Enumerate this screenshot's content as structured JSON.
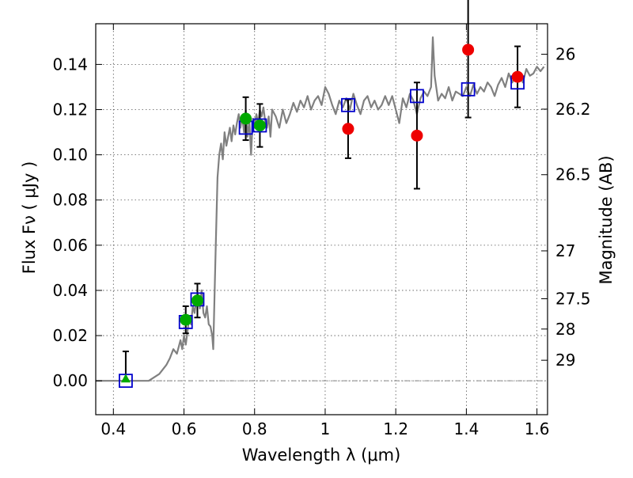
{
  "chart_data": {
    "type": "scatter",
    "xlabel": "Wavelength  λ (μm)",
    "ylabel": "Flux  Fν  ( μJy )",
    "y2label": "Magnitude (AB)",
    "xlim": [
      0.35,
      1.63
    ],
    "ylim": [
      -0.015,
      0.158
    ],
    "x_ticks": [
      0.4,
      0.6,
      0.8,
      1.0,
      1.2,
      1.4,
      1.6
    ],
    "x_tick_labels": [
      "0.4",
      "0.6",
      "0.8",
      "1",
      "1.2",
      "1.4",
      "1.6"
    ],
    "y_ticks": [
      0.0,
      0.02,
      0.04,
      0.06,
      0.08,
      0.1,
      0.12,
      0.14
    ],
    "y_tick_labels": [
      "0.00",
      "0.02",
      "0.04",
      "0.06",
      "0.08",
      "0.10",
      "0.12",
      "0.14"
    ],
    "mag_ticks": [
      {
        "label": "26",
        "flux": 0.1445
      },
      {
        "label": "26.2",
        "flux": 0.1202
      },
      {
        "label": "26.5",
        "flux": 0.0912
      },
      {
        "label": "27",
        "flux": 0.0575
      },
      {
        "label": "27.5",
        "flux": 0.0363
      },
      {
        "label": "28",
        "flux": 0.0229
      },
      {
        "label": "29",
        "flux": 0.0091
      }
    ],
    "grid": true,
    "zero_line": true,
    "colors": {
      "model": "#808080",
      "model_fluxes": "#0000cc",
      "detections": "#00aa00",
      "upper_bands": "#ee0000",
      "errorbars": "#000000",
      "zero_line": "#888888"
    },
    "series": [
      {
        "kind": "line",
        "x": [
          0.35,
          0.5,
          0.51,
          0.53,
          0.55,
          0.56,
          0.57,
          0.58,
          0.59,
          0.595,
          0.6,
          0.605,
          0.61,
          0.615,
          0.62,
          0.625,
          0.63,
          0.635,
          0.64,
          0.645,
          0.65,
          0.655,
          0.66,
          0.665,
          0.67,
          0.675,
          0.68,
          0.683,
          0.687,
          0.69,
          0.695,
          0.7,
          0.705,
          0.71,
          0.715,
          0.72,
          0.725,
          0.73,
          0.735,
          0.74,
          0.745,
          0.75,
          0.755,
          0.76,
          0.765,
          0.77,
          0.775,
          0.78,
          0.785,
          0.79,
          0.795,
          0.8,
          0.805,
          0.81,
          0.815,
          0.82,
          0.825,
          0.83,
          0.835,
          0.84,
          0.845,
          0.85,
          0.86,
          0.87,
          0.88,
          0.89,
          0.9,
          0.91,
          0.92,
          0.93,
          0.94,
          0.95,
          0.96,
          0.97,
          0.98,
          0.99,
          1.0,
          1.01,
          1.02,
          1.03,
          1.04,
          1.05,
          1.06,
          1.07,
          1.08,
          1.09,
          1.1,
          1.11,
          1.12,
          1.13,
          1.14,
          1.15,
          1.16,
          1.17,
          1.18,
          1.19,
          1.2,
          1.21,
          1.22,
          1.23,
          1.24,
          1.25,
          1.26,
          1.27,
          1.28,
          1.29,
          1.3,
          1.305,
          1.31,
          1.32,
          1.33,
          1.34,
          1.35,
          1.36,
          1.37,
          1.38,
          1.39,
          1.4,
          1.41,
          1.42,
          1.43,
          1.44,
          1.45,
          1.46,
          1.47,
          1.48,
          1.49,
          1.5,
          1.51,
          1.52,
          1.53,
          1.54,
          1.55,
          1.56,
          1.57,
          1.58,
          1.59,
          1.6,
          1.61,
          1.62
        ],
        "y": [
          0.0,
          0.0,
          0.001,
          0.003,
          0.007,
          0.01,
          0.014,
          0.012,
          0.018,
          0.014,
          0.02,
          0.016,
          0.022,
          0.028,
          0.025,
          0.033,
          0.03,
          0.036,
          0.038,
          0.032,
          0.04,
          0.03,
          0.028,
          0.033,
          0.025,
          0.024,
          0.02,
          0.014,
          0.04,
          0.06,
          0.09,
          0.1,
          0.105,
          0.098,
          0.11,
          0.104,
          0.108,
          0.112,
          0.106,
          0.113,
          0.109,
          0.114,
          0.118,
          0.112,
          0.117,
          0.11,
          0.12,
          0.108,
          0.115,
          0.1,
          0.116,
          0.112,
          0.118,
          0.114,
          0.12,
          0.117,
          0.121,
          0.115,
          0.112,
          0.117,
          0.108,
          0.12,
          0.117,
          0.112,
          0.12,
          0.114,
          0.118,
          0.123,
          0.119,
          0.124,
          0.121,
          0.126,
          0.12,
          0.124,
          0.126,
          0.122,
          0.13,
          0.127,
          0.122,
          0.118,
          0.124,
          0.121,
          0.125,
          0.12,
          0.127,
          0.122,
          0.118,
          0.124,
          0.126,
          0.121,
          0.124,
          0.12,
          0.122,
          0.126,
          0.122,
          0.126,
          0.12,
          0.114,
          0.125,
          0.121,
          0.127,
          0.124,
          0.118,
          0.125,
          0.128,
          0.126,
          0.13,
          0.152,
          0.135,
          0.124,
          0.127,
          0.125,
          0.13,
          0.124,
          0.128,
          0.127,
          0.126,
          0.13,
          0.126,
          0.131,
          0.127,
          0.13,
          0.128,
          0.132,
          0.13,
          0.126,
          0.131,
          0.134,
          0.13,
          0.136,
          0.132,
          0.135,
          0.136,
          0.132,
          0.138,
          0.135,
          0.136,
          0.139,
          0.137,
          0.139
        ]
      },
      {
        "kind": "open_squares",
        "x": [
          0.435,
          0.605,
          0.638,
          0.775,
          0.815,
          1.065,
          1.26,
          1.405,
          1.545
        ],
        "y": [
          0.0,
          0.026,
          0.036,
          0.112,
          0.113,
          0.122,
          0.126,
          0.129,
          0.132
        ]
      },
      {
        "kind": "filled_circles",
        "x": [
          0.605,
          0.638,
          0.775,
          0.815
        ],
        "y": [
          0.027,
          0.0355,
          0.116,
          0.113
        ],
        "yerr": [
          0.006,
          0.0075,
          0.0095,
          0.0095
        ]
      },
      {
        "kind": "triangle",
        "x": [
          0.435
        ],
        "y": [
          0.001
        ],
        "yerr_up": [
          0.012
        ],
        "yerr_down": [
          0.0
        ]
      },
      {
        "kind": "filled_circles_red",
        "x": [
          1.065,
          1.26,
          1.405,
          1.545
        ],
        "y": [
          0.1115,
          0.1085,
          0.1465,
          0.1345
        ],
        "yerr": [
          0.013,
          0.0235,
          0.03,
          0.0135
        ]
      }
    ]
  }
}
